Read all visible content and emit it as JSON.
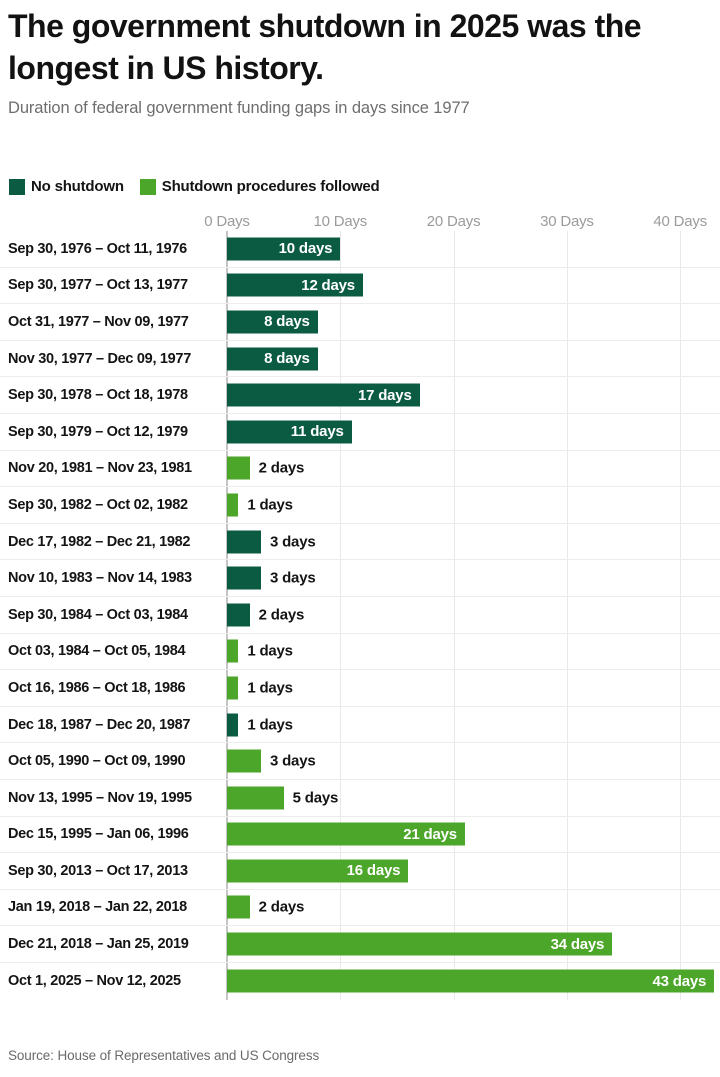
{
  "header": {
    "title": "The government shutdown in 2025 was the longest in US history.",
    "subtitle": "Duration of federal government funding gaps in days since 1977"
  },
  "legend": {
    "items": [
      {
        "label": "No shutdown",
        "color": "#0B5B43"
      },
      {
        "label": "Shutdown procedures followed",
        "color": "#4BA629"
      }
    ]
  },
  "chart_data": {
    "type": "bar",
    "orientation": "horizontal",
    "title": "The government shutdown in 2025 was the longest in US history.",
    "subtitle": "Duration of federal government funding gaps in days since 1977",
    "unit": "days",
    "xlim": [
      0,
      43.5
    ],
    "x_ticks": [
      {
        "days": 0,
        "label": "0 Days"
      },
      {
        "days": 10,
        "label": "10 Days"
      },
      {
        "days": 20,
        "label": "20 Days"
      },
      {
        "days": 30,
        "label": "30 Days"
      },
      {
        "days": 40,
        "label": "40 Days"
      }
    ],
    "series_colors": {
      "no_shutdown": "#0B5B43",
      "shutdown_procedures": "#4BA629"
    },
    "series_labels": {
      "no_shutdown": "No shutdown",
      "shutdown_procedures": "Shutdown procedures followed"
    },
    "rows": [
      {
        "label": "Sep 30, 1976 – Oct 11, 1976",
        "days": 10,
        "value_label": "10 days",
        "series": "no_shutdown"
      },
      {
        "label": "Sep 30, 1977 – Oct 13, 1977",
        "days": 12,
        "value_label": "12 days",
        "series": "no_shutdown"
      },
      {
        "label": "Oct 31, 1977 – Nov 09, 1977",
        "days": 8,
        "value_label": "8 days",
        "series": "no_shutdown"
      },
      {
        "label": "Nov 30, 1977 – Dec 09, 1977",
        "days": 8,
        "value_label": "8 days",
        "series": "no_shutdown"
      },
      {
        "label": "Sep 30, 1978 – Oct 18, 1978",
        "days": 17,
        "value_label": "17 days",
        "series": "no_shutdown"
      },
      {
        "label": "Sep 30, 1979 – Oct 12, 1979",
        "days": 11,
        "value_label": "11 days",
        "series": "no_shutdown"
      },
      {
        "label": "Nov 20, 1981 – Nov 23, 1981",
        "days": 2,
        "value_label": "2 days",
        "series": "shutdown_procedures"
      },
      {
        "label": "Sep 30, 1982 – Oct 02, 1982",
        "days": 1,
        "value_label": "1 days",
        "series": "shutdown_procedures"
      },
      {
        "label": "Dec 17, 1982 – Dec 21, 1982",
        "days": 3,
        "value_label": "3 days",
        "series": "no_shutdown"
      },
      {
        "label": "Nov 10, 1983 – Nov 14, 1983",
        "days": 3,
        "value_label": "3 days",
        "series": "no_shutdown"
      },
      {
        "label": "Sep 30, 1984 – Oct 03, 1984",
        "days": 2,
        "value_label": "2 days",
        "series": "no_shutdown"
      },
      {
        "label": "Oct 03, 1984 – Oct 05, 1984",
        "days": 1,
        "value_label": "1 days",
        "series": "shutdown_procedures"
      },
      {
        "label": "Oct 16, 1986 – Oct 18, 1986",
        "days": 1,
        "value_label": "1 days",
        "series": "shutdown_procedures"
      },
      {
        "label": "Dec 18, 1987 – Dec 20, 1987",
        "days": 1,
        "value_label": "1 days",
        "series": "no_shutdown"
      },
      {
        "label": "Oct 05, 1990 – Oct 09, 1990",
        "days": 3,
        "value_label": "3 days",
        "series": "shutdown_procedures"
      },
      {
        "label": "Nov 13, 1995 – Nov 19, 1995",
        "days": 5,
        "value_label": "5 days",
        "series": "shutdown_procedures"
      },
      {
        "label": "Dec 15, 1995 – Jan 06, 1996",
        "days": 21,
        "value_label": "21 days",
        "series": "shutdown_procedures"
      },
      {
        "label": "Sep 30, 2013 – Oct 17, 2013",
        "days": 16,
        "value_label": "16 days",
        "series": "shutdown_procedures"
      },
      {
        "label": "Jan 19, 2018 – Jan 22, 2018",
        "days": 2,
        "value_label": "2 days",
        "series": "shutdown_procedures"
      },
      {
        "label": "Dec 21, 2018 – Jan 25, 2019",
        "days": 34,
        "value_label": "34 days",
        "series": "shutdown_procedures"
      },
      {
        "label": "Oct 1, 2025 – Nov 12, 2025",
        "days": 43,
        "value_label": "43 days",
        "series": "shutdown_procedures"
      }
    ]
  },
  "footer": {
    "source": "Source: House of Representatives and US Congress"
  }
}
